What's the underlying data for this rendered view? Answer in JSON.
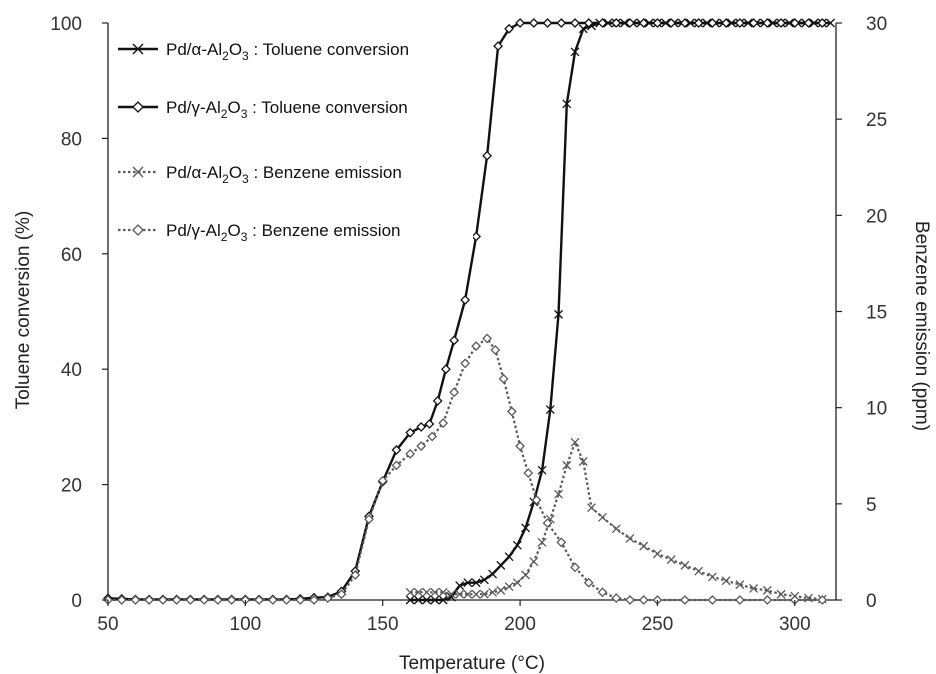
{
  "chart_data": {
    "type": "line",
    "xlabel": "Temperature (°C)",
    "ylabel": "Toluene conversion (%)",
    "y2label": "Benzene emission (ppm)",
    "xlim": [
      50,
      315
    ],
    "ylim": [
      0,
      100
    ],
    "y2lim": [
      0,
      30
    ],
    "xticks": [
      50,
      100,
      150,
      200,
      250,
      300
    ],
    "yticks": [
      0,
      20,
      40,
      60,
      80,
      100
    ],
    "y2ticks": [
      0,
      5,
      10,
      15,
      20,
      25,
      30
    ],
    "legend_position": "top-left",
    "grid": false,
    "series": [
      {
        "legend_parts": [
          "Pd/α-Al",
          "2",
          "O",
          "3",
          " : Toluene conversion"
        ],
        "axis": "left",
        "marker": "x",
        "dash": "solid",
        "stroke": 2.4,
        "color": "#111111",
        "x": [
          160,
          163,
          166,
          169,
          172,
          175,
          178,
          181,
          184,
          187,
          190,
          193,
          196,
          199,
          202,
          205,
          208,
          211,
          214,
          217,
          220,
          223,
          226,
          229,
          232,
          235,
          238,
          241,
          244,
          247,
          250,
          253,
          256,
          259,
          262,
          265,
          268,
          271,
          274,
          277,
          280,
          283,
          286,
          289,
          292,
          295,
          298,
          301,
          304,
          307,
          310,
          313
        ],
        "y": [
          0,
          0,
          0,
          0,
          0,
          0.5,
          2.5,
          3,
          3,
          3.5,
          4.5,
          6,
          7.5,
          9.5,
          12.5,
          17,
          22.5,
          33,
          49.5,
          86,
          95,
          99,
          99.5,
          100,
          100,
          100,
          100,
          100,
          100,
          100,
          100,
          100,
          100,
          100,
          100,
          100,
          100,
          100,
          100,
          100,
          100,
          100,
          100,
          100,
          100,
          100,
          100,
          100,
          100,
          100,
          100,
          100
        ]
      },
      {
        "legend_parts": [
          "Pd/γ-Al",
          "2",
          "O",
          "3",
          " : Toluene conversion"
        ],
        "axis": "left",
        "marker": "diamond",
        "dash": "solid",
        "stroke": 2.4,
        "color": "#111111",
        "x": [
          50,
          55,
          60,
          65,
          70,
          75,
          80,
          85,
          90,
          95,
          100,
          105,
          110,
          115,
          120,
          125,
          130,
          135,
          140,
          145,
          150,
          155,
          160,
          164,
          167,
          170,
          173,
          176,
          180,
          184,
          188,
          192,
          196,
          200,
          205,
          210,
          215,
          220,
          225,
          230,
          235,
          240,
          245,
          250,
          255,
          260,
          265,
          270,
          275,
          280,
          285,
          290,
          295,
          300,
          305,
          310
        ],
        "y": [
          0.3,
          0.2,
          0.1,
          0.1,
          0.1,
          0.1,
          0.1,
          0.1,
          0.1,
          0.1,
          0.1,
          0.1,
          0.1,
          0.1,
          0.2,
          0.4,
          0.5,
          1.5,
          5,
          14.5,
          20.5,
          26,
          29,
          30,
          30.5,
          34.5,
          40,
          45,
          52,
          63,
          77,
          96,
          99,
          100,
          100,
          100,
          100,
          100,
          100,
          100,
          100,
          100,
          100,
          100,
          100,
          100,
          100,
          100,
          100,
          100,
          100,
          100,
          100,
          100,
          100,
          100
        ]
      },
      {
        "legend_parts": [
          "Pd/α-Al",
          "2",
          "O",
          "3",
          " : Benzene emission"
        ],
        "axis": "right",
        "marker": "x",
        "dash": "dotted",
        "stroke": 2.2,
        "color": "#5a5a5a",
        "x": [
          160,
          163,
          166,
          169,
          172,
          175,
          178,
          181,
          184,
          187,
          190,
          193,
          196,
          199,
          202,
          205,
          208,
          211,
          214,
          217,
          220,
          223,
          226,
          230,
          235,
          240,
          245,
          250,
          255,
          260,
          265,
          270,
          275,
          280,
          285,
          290,
          295,
          300,
          305,
          310
        ],
        "y": [
          0.4,
          0.4,
          0.4,
          0.4,
          0.4,
          0.3,
          0.3,
          0.3,
          0.3,
          0.3,
          0.4,
          0.5,
          0.7,
          0.9,
          1.3,
          2,
          3,
          4.2,
          5.5,
          7,
          8.2,
          7.2,
          4.8,
          4.3,
          3.7,
          3.2,
          2.8,
          2.4,
          2.1,
          1.8,
          1.5,
          1.2,
          1.0,
          0.8,
          0.6,
          0.5,
          0.3,
          0.2,
          0.1,
          0.05
        ]
      },
      {
        "legend_parts": [
          "Pd/γ-Al",
          "2",
          "O",
          "3",
          " : Benzene emission"
        ],
        "axis": "right",
        "marker": "diamond",
        "dash": "dotted",
        "stroke": 2.2,
        "color": "#5a5a5a",
        "x": [
          50,
          55,
          60,
          65,
          70,
          75,
          80,
          85,
          90,
          95,
          100,
          105,
          110,
          115,
          120,
          125,
          130,
          135,
          140,
          145,
          150,
          155,
          160,
          164,
          168,
          172,
          176,
          180,
          184,
          188,
          191,
          194,
          197,
          200,
          203,
          206,
          210,
          215,
          220,
          225,
          230,
          235,
          240,
          245,
          250,
          260,
          270,
          280,
          290,
          300,
          310
        ],
        "y": [
          0,
          0,
          0,
          0,
          0,
          0,
          0,
          0,
          0,
          0,
          0,
          0,
          0,
          0,
          0,
          0,
          0.1,
          0.3,
          1.3,
          4.2,
          6.2,
          7.0,
          7.6,
          8.0,
          8.5,
          9.2,
          10.8,
          12.3,
          13.2,
          13.6,
          13.0,
          11.5,
          9.8,
          8.0,
          6.6,
          5.2,
          4.0,
          3.0,
          1.7,
          0.9,
          0.4,
          0.1,
          0,
          0,
          0,
          0,
          0,
          0,
          0,
          0,
          0
        ]
      }
    ]
  }
}
